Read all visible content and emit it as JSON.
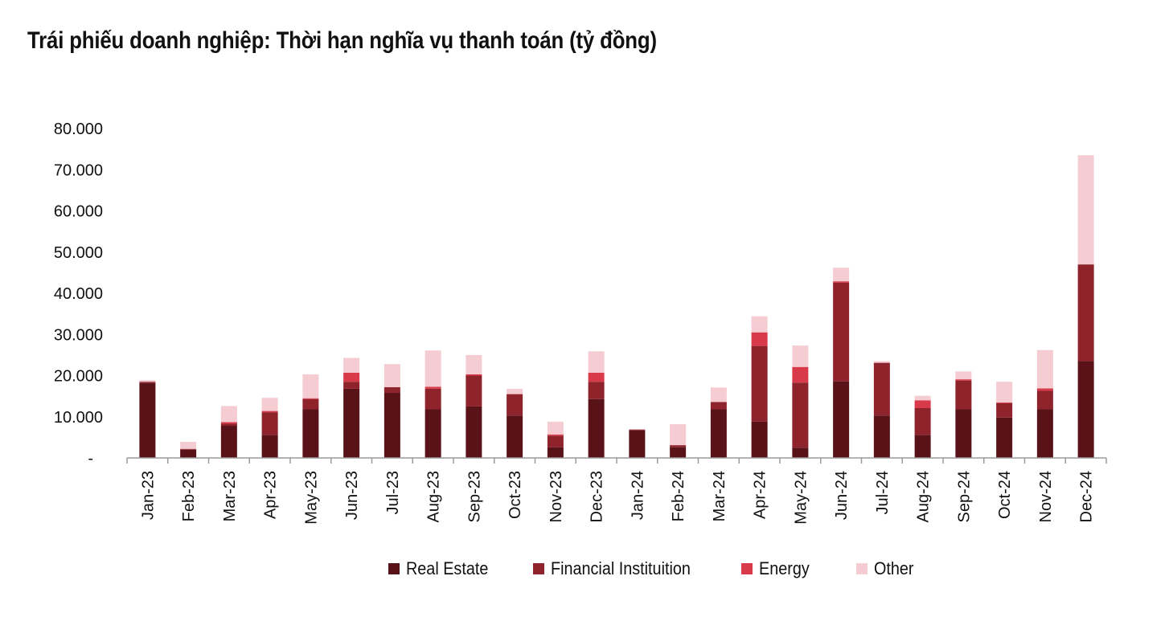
{
  "chart_data": {
    "type": "bar",
    "stacked": true,
    "title": "Trái phiếu doanh nghiệp: Thời hạn nghĩa vụ thanh toán (tỷ đồng)",
    "xlabel": "",
    "ylabel": "",
    "ylim": [
      0,
      80000
    ],
    "yticks": [
      "-",
      "10.000",
      "20.000",
      "30.000",
      "40.000",
      "50.000",
      "60.000",
      "70.000",
      "80.000"
    ],
    "grid": false,
    "legend_position": "bottom",
    "categories": [
      "Jan-23",
      "Feb-23",
      "Mar-23",
      "Apr-23",
      "May-23",
      "Jun-23",
      "Jul-23",
      "Aug-23",
      "Sep-23",
      "Oct-23",
      "Nov-23",
      "Dec-23",
      "Jan-24",
      "Feb-24",
      "Mar-24",
      "Apr-24",
      "May-24",
      "Jun-24",
      "Jul-24",
      "Aug-24",
      "Sep-24",
      "Oct-24",
      "Nov-24",
      "Dec-24"
    ],
    "series": [
      {
        "name": "Real Estate",
        "color": "#5a1219",
        "values": [
          18200,
          2000,
          7800,
          5600,
          11800,
          16800,
          15800,
          11800,
          12500,
          10300,
          2600,
          14300,
          6700,
          2600,
          11800,
          8800,
          2500,
          18600,
          10300,
          5600,
          11800,
          9800,
          11800,
          23500
        ]
      },
      {
        "name": "Financial Instituition",
        "color": "#8e232c",
        "values": [
          300,
          200,
          500,
          5500,
          2500,
          1700,
          1400,
          5000,
          7500,
          5200,
          2800,
          4200,
          200,
          500,
          1800,
          18400,
          15800,
          24000,
          12800,
          6500,
          7000,
          3500,
          4500,
          23500
        ]
      },
      {
        "name": "Energy",
        "color": "#d93a4a",
        "values": [
          0,
          0,
          400,
          300,
          200,
          2200,
          0,
          500,
          300,
          0,
          300,
          2200,
          0,
          0,
          0,
          3300,
          3800,
          300,
          0,
          1900,
          300,
          200,
          600,
          0
        ]
      },
      {
        "name": "Other",
        "color": "#f4ccd2",
        "values": [
          400,
          1700,
          3900,
          3200,
          5800,
          3600,
          5600,
          8800,
          4700,
          1300,
          3100,
          5200,
          0,
          5100,
          3500,
          3900,
          5200,
          3300,
          400,
          1100,
          1900,
          5000,
          9300,
          26500
        ]
      }
    ]
  }
}
